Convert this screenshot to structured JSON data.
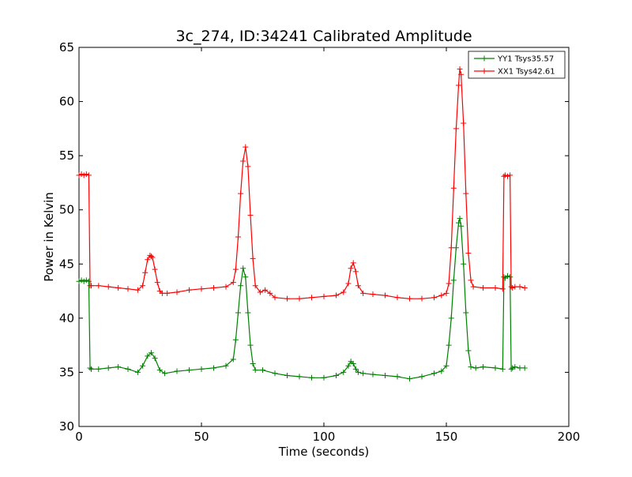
{
  "chart_data": {
    "type": "line",
    "title": "3c_274, ID:34241 Calibrated Amplitude",
    "xlabel": "Time (seconds)",
    "ylabel": "Power in Kelvin",
    "xlim": [
      0,
      200
    ],
    "ylim": [
      30,
      65
    ],
    "xticks": [
      0,
      50,
      100,
      150,
      200
    ],
    "yticks": [
      30,
      35,
      40,
      45,
      50,
      55,
      60,
      65
    ],
    "xtick_labels": [
      "0",
      "50",
      "100",
      "150",
      "200"
    ],
    "ytick_labels": [
      "30",
      "35",
      "40",
      "45",
      "50",
      "55",
      "60",
      "65"
    ],
    "grid": false,
    "legend_position": "top-right",
    "marker": "+",
    "series": [
      {
        "name": "YY1 Tsys35.57",
        "color": "#008000",
        "x": [
          0,
          1,
          2,
          3,
          4,
          4.5,
          5,
          8,
          12,
          16,
          20,
          24,
          26,
          28,
          29.5,
          31,
          33,
          35,
          40,
          45,
          50,
          55,
          60,
          63,
          64,
          65,
          66,
          67,
          68,
          69,
          70,
          71,
          72,
          75,
          80,
          85,
          90,
          95,
          100,
          105,
          108,
          110,
          111,
          112,
          113,
          114,
          116,
          120,
          125,
          130,
          135,
          140,
          145,
          148,
          150,
          151,
          152,
          153,
          154,
          155,
          155.5,
          156,
          157,
          158,
          159,
          160,
          162,
          165,
          170,
          173,
          173.5,
          174,
          175,
          176,
          176.5,
          177,
          178,
          180,
          182
        ],
        "y": [
          43.4,
          43.5,
          43.4,
          43.5,
          43.4,
          35.4,
          35.3,
          35.3,
          35.4,
          35.5,
          35.3,
          35.0,
          35.6,
          36.5,
          36.8,
          36.3,
          35.2,
          34.9,
          35.1,
          35.2,
          35.3,
          35.4,
          35.6,
          36.2,
          38.0,
          40.5,
          43.0,
          44.6,
          43.8,
          40.5,
          37.5,
          35.8,
          35.2,
          35.2,
          34.9,
          34.7,
          34.6,
          34.5,
          34.5,
          34.7,
          35.0,
          35.6,
          36.0,
          35.8,
          35.3,
          35.0,
          34.9,
          34.8,
          34.7,
          34.6,
          34.4,
          34.6,
          34.9,
          35.1,
          35.6,
          37.5,
          40.0,
          43.5,
          46.5,
          48.8,
          49.2,
          48.5,
          45.0,
          40.5,
          37.0,
          35.5,
          35.4,
          35.5,
          35.4,
          35.3,
          43.8,
          43.7,
          43.9,
          43.8,
          35.3,
          35.4,
          35.5,
          35.4,
          35.4
        ]
      },
      {
        "name": "XX1 Tsys42.61",
        "color": "#ff0000",
        "x": [
          0,
          1,
          2,
          3,
          4,
          4.5,
          5,
          8,
          12,
          16,
          20,
          24,
          26,
          27,
          28,
          29,
          29.5,
          30,
          31,
          32,
          33,
          34,
          36,
          40,
          45,
          50,
          55,
          60,
          63,
          64,
          65,
          66,
          67,
          68,
          69,
          70,
          71,
          72,
          74,
          76,
          78,
          80,
          85,
          90,
          95,
          100,
          105,
          108,
          110,
          111,
          112,
          113,
          114,
          116,
          120,
          125,
          130,
          135,
          140,
          145,
          148,
          150,
          151,
          152,
          153,
          154,
          155,
          155.5,
          156,
          157,
          158,
          159,
          160,
          161,
          165,
          170,
          173,
          173.5,
          174,
          175,
          176,
          176.5,
          177,
          178,
          180,
          182
        ],
        "y": [
          53.2,
          53.3,
          53.2,
          53.3,
          53.2,
          43.0,
          43.0,
          43.0,
          42.9,
          42.8,
          42.7,
          42.6,
          43.0,
          44.2,
          45.4,
          45.8,
          45.7,
          45.6,
          44.5,
          43.3,
          42.5,
          42.3,
          42.3,
          42.4,
          42.6,
          42.7,
          42.8,
          42.9,
          43.3,
          44.5,
          47.5,
          51.5,
          54.5,
          55.8,
          54.0,
          49.5,
          45.5,
          43.0,
          42.4,
          42.6,
          42.3,
          41.9,
          41.8,
          41.8,
          41.9,
          42.0,
          42.1,
          42.4,
          43.2,
          44.6,
          45.1,
          44.3,
          43.0,
          42.3,
          42.2,
          42.1,
          41.9,
          41.8,
          41.8,
          41.9,
          42.1,
          42.3,
          43.2,
          46.5,
          52.0,
          57.5,
          61.5,
          63.0,
          62.5,
          58.0,
          51.5,
          46.0,
          43.5,
          42.9,
          42.8,
          42.8,
          42.7,
          53.1,
          53.2,
          53.1,
          53.2,
          42.9,
          42.8,
          42.9,
          42.9,
          42.8
        ]
      }
    ]
  }
}
